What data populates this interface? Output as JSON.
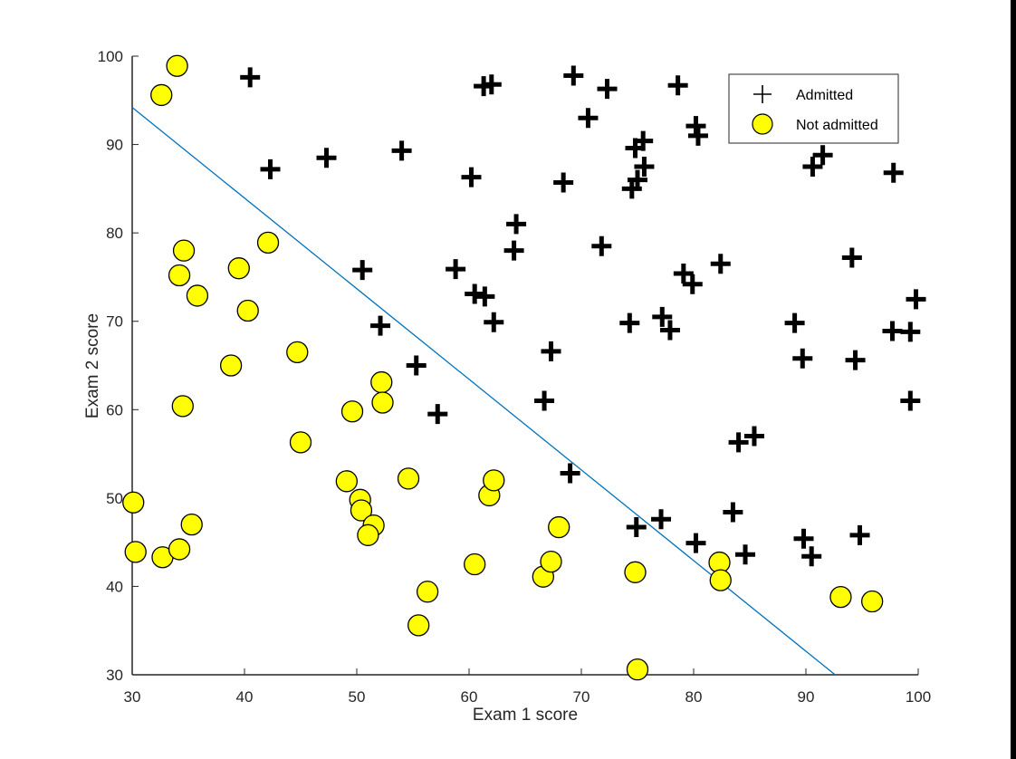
{
  "chart_data": {
    "type": "scatter",
    "title": "",
    "xlabel": "Exam 1 score",
    "ylabel": "Exam 2 score",
    "xlim": [
      30,
      100
    ],
    "ylim": [
      30,
      100
    ],
    "xticks": [
      30,
      40,
      50,
      60,
      70,
      80,
      90,
      100
    ],
    "yticks": [
      30,
      40,
      50,
      60,
      70,
      80,
      90,
      100
    ],
    "grid": false,
    "legend_position": "top-right",
    "series": [
      {
        "name": "Admitted",
        "marker": "plus",
        "color": "#000000",
        "points": [
          [
            40.5,
            97.6
          ],
          [
            42.3,
            87.2
          ],
          [
            47.3,
            88.5
          ],
          [
            54.0,
            89.3
          ],
          [
            61.3,
            96.6
          ],
          [
            62.0,
            96.8
          ],
          [
            69.3,
            97.8
          ],
          [
            72.3,
            96.3
          ],
          [
            78.6,
            96.7
          ],
          [
            70.6,
            93.0
          ],
          [
            80.2,
            92.1
          ],
          [
            80.4,
            91.0
          ],
          [
            75.5,
            90.4
          ],
          [
            74.8,
            89.6
          ],
          [
            75.0,
            86.0
          ],
          [
            75.6,
            87.5
          ],
          [
            74.5,
            85.0
          ],
          [
            60.2,
            86.3
          ],
          [
            68.4,
            85.7
          ],
          [
            64.2,
            81.0
          ],
          [
            64.0,
            78.0
          ],
          [
            71.8,
            78.5
          ],
          [
            91.5,
            88.8
          ],
          [
            90.6,
            87.5
          ],
          [
            97.8,
            86.8
          ],
          [
            94.1,
            77.2
          ],
          [
            82.4,
            76.5
          ],
          [
            79.1,
            75.4
          ],
          [
            79.9,
            74.2
          ],
          [
            50.5,
            75.8
          ],
          [
            58.8,
            75.9
          ],
          [
            60.5,
            73.1
          ],
          [
            61.4,
            72.8
          ],
          [
            62.2,
            69.9
          ],
          [
            52.1,
            69.5
          ],
          [
            74.3,
            69.8
          ],
          [
            77.2,
            70.5
          ],
          [
            77.9,
            69.0
          ],
          [
            89.0,
            69.8
          ],
          [
            97.7,
            68.9
          ],
          [
            99.3,
            68.8
          ],
          [
            99.8,
            72.5
          ],
          [
            67.3,
            66.6
          ],
          [
            89.7,
            65.8
          ],
          [
            94.4,
            65.6
          ],
          [
            55.3,
            65.0
          ],
          [
            57.2,
            59.5
          ],
          [
            66.7,
            61.0
          ],
          [
            99.3,
            61.0
          ],
          [
            84.0,
            56.3
          ],
          [
            85.4,
            57.0
          ],
          [
            69.0,
            52.8
          ],
          [
            74.9,
            46.7
          ],
          [
            77.1,
            47.6
          ],
          [
            83.5,
            48.4
          ],
          [
            80.2,
            44.9
          ],
          [
            84.6,
            43.6
          ],
          [
            89.8,
            45.4
          ],
          [
            90.5,
            43.4
          ],
          [
            94.8,
            45.8
          ]
        ]
      },
      {
        "name": "Not admitted",
        "marker": "circle",
        "color": "#ffff00",
        "points": [
          [
            34.0,
            98.9
          ],
          [
            32.6,
            95.6
          ],
          [
            34.6,
            78.0
          ],
          [
            42.1,
            78.9
          ],
          [
            34.2,
            75.2
          ],
          [
            39.5,
            76.0
          ],
          [
            35.8,
            72.9
          ],
          [
            40.3,
            71.2
          ],
          [
            44.7,
            66.5
          ],
          [
            38.8,
            65.0
          ],
          [
            52.2,
            63.1
          ],
          [
            52.3,
            60.8
          ],
          [
            49.6,
            59.8
          ],
          [
            34.5,
            60.4
          ],
          [
            45.0,
            56.3
          ],
          [
            30.1,
            49.5
          ],
          [
            30.3,
            43.9
          ],
          [
            32.7,
            43.3
          ],
          [
            34.2,
            44.2
          ],
          [
            35.3,
            47.0
          ],
          [
            49.1,
            51.9
          ],
          [
            50.3,
            49.8
          ],
          [
            50.4,
            48.6
          ],
          [
            51.5,
            46.9
          ],
          [
            51.0,
            45.8
          ],
          [
            54.6,
            52.2
          ],
          [
            61.8,
            50.3
          ],
          [
            62.2,
            52.0
          ],
          [
            60.5,
            42.5
          ],
          [
            56.3,
            39.4
          ],
          [
            55.5,
            35.6
          ],
          [
            66.6,
            41.1
          ],
          [
            67.3,
            42.8
          ],
          [
            68.0,
            46.7
          ],
          [
            74.8,
            41.6
          ],
          [
            75.0,
            30.6
          ],
          [
            82.3,
            42.7
          ],
          [
            82.4,
            40.7
          ],
          [
            93.1,
            38.8
          ],
          [
            95.9,
            38.3
          ]
        ]
      }
    ],
    "decision_boundary": {
      "color": "#0072bd",
      "points": [
        [
          30.0,
          94.2
        ],
        [
          92.6,
          30.0
        ]
      ]
    }
  },
  "legend": {
    "items": [
      {
        "label": "Admitted"
      },
      {
        "label": "Not admitted"
      }
    ]
  }
}
